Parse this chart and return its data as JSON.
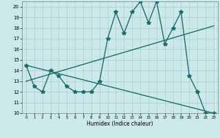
{
  "title": "",
  "xlabel": "Humidex (Indice chaleur)",
  "xlim": [
    -0.5,
    23.5
  ],
  "ylim": [
    10,
    20.5
  ],
  "xticks": [
    0,
    1,
    2,
    3,
    4,
    5,
    6,
    7,
    8,
    9,
    10,
    11,
    12,
    13,
    14,
    15,
    16,
    17,
    18,
    19,
    20,
    21,
    22,
    23
  ],
  "yticks": [
    10,
    11,
    12,
    13,
    14,
    15,
    16,
    17,
    18,
    19,
    20
  ],
  "bg_color": "#cce9ea",
  "line_color": "#1a6b6b",
  "grid_color": "#aacccc",
  "data_x": [
    0,
    1,
    2,
    3,
    4,
    5,
    6,
    7,
    8,
    9,
    10,
    11,
    12,
    13,
    14,
    15,
    16,
    17,
    18,
    19,
    20,
    21,
    22,
    23
  ],
  "data_y": [
    14.5,
    12.5,
    12.0,
    14.0,
    13.5,
    12.5,
    12.0,
    12.0,
    12.0,
    13.0,
    17.0,
    19.5,
    17.5,
    19.5,
    20.5,
    18.5,
    20.5,
    16.5,
    18.0,
    19.5,
    13.5,
    12.0,
    10.0,
    10.0
  ],
  "trend1_x": [
    0,
    23
  ],
  "trend1_y": [
    13.0,
    18.2
  ],
  "trend2_x": [
    0,
    23
  ],
  "trend2_y": [
    14.5,
    10.0
  ],
  "marker": "*",
  "markersize": 4,
  "linewidth": 1.0
}
